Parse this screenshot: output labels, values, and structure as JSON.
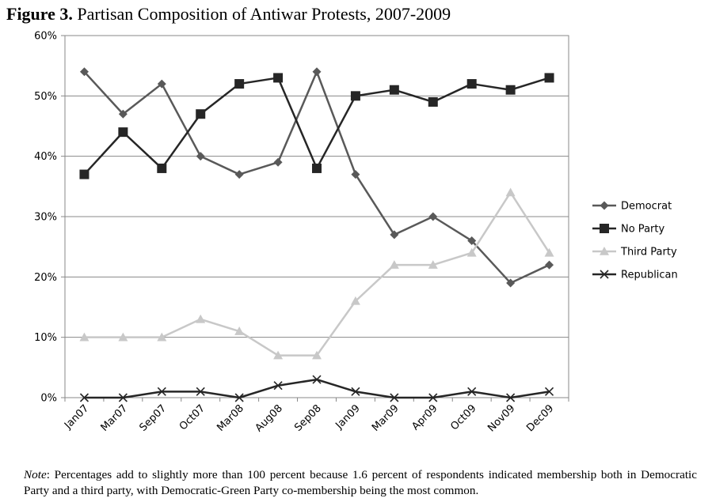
{
  "figure": {
    "label": "Figure 3.",
    "title": "Partisan Composition of Antiwar Protests, 2007-2009"
  },
  "note": {
    "label": "Note",
    "text": ": Percentages add to slightly more than 100 percent because 1.6 percent of respondents indicated membership both in Democratic Party and a third party, with Democratic-Green Party co-membership being the most common."
  },
  "chart_data": {
    "type": "line",
    "title": "Partisan Composition of Antiwar Protests, 2007-2009",
    "xlabel": "",
    "ylabel": "",
    "ylim": [
      0,
      60
    ],
    "yticks": [
      "0%",
      "10%",
      "20%",
      "30%",
      "40%",
      "50%",
      "60%"
    ],
    "y_unit": "percent",
    "grid": "horizontal",
    "legend": "right",
    "categories": [
      "Jan07",
      "Mar07",
      "Sep07",
      "Oct07",
      "Mar08",
      "Aug08",
      "Sep08",
      "Jan09",
      "Mar09",
      "Apr09",
      "Oct09",
      "Nov09",
      "Dec09"
    ],
    "series": [
      {
        "name": "Democrat",
        "marker": "diamond",
        "color": "#595959",
        "values": [
          54,
          47,
          52,
          40,
          37,
          39,
          54,
          37,
          27,
          30,
          26,
          19,
          22
        ]
      },
      {
        "name": "No Party",
        "marker": "square",
        "color": "#262626",
        "values": [
          37,
          44,
          38,
          47,
          52,
          53,
          38,
          50,
          51,
          49,
          52,
          51,
          53
        ]
      },
      {
        "name": "Third Party",
        "marker": "triangle",
        "color": "#c8c8c8",
        "values": [
          10,
          10,
          10,
          13,
          11,
          7,
          7,
          16,
          22,
          22,
          24,
          34,
          24
        ]
      },
      {
        "name": "Republican",
        "marker": "x",
        "color": "#262626",
        "values": [
          0,
          0,
          1,
          1,
          0,
          2,
          3,
          1,
          0,
          0,
          1,
          0,
          1
        ]
      }
    ]
  }
}
